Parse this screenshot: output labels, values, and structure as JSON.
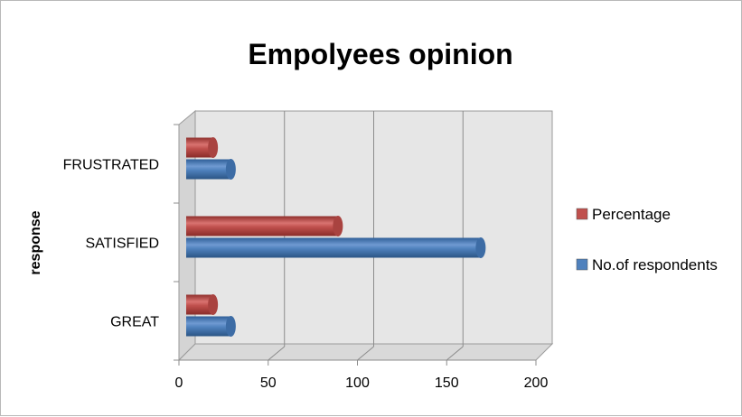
{
  "chart_data": {
    "type": "bar",
    "orientation": "horizontal",
    "title": "Empolyees opinion",
    "xlabel": "",
    "ylabel": "response",
    "categories": [
      "GREAT",
      "SATISFIED",
      "FRUSTRATED"
    ],
    "series": [
      {
        "name": "No.of respondents",
        "values": [
          25,
          165,
          25
        ],
        "color": "#4f81bd"
      },
      {
        "name": "Percentage",
        "values": [
          15,
          85,
          15
        ],
        "color": "#c0504d"
      }
    ],
    "xlim": [
      0,
      200
    ],
    "xticks": [
      "0",
      "50",
      "100",
      "150",
      "200"
    ],
    "grid": true,
    "legend": "right",
    "style": "3d-cylinder",
    "back_wall_color": "#e6e6e6"
  }
}
